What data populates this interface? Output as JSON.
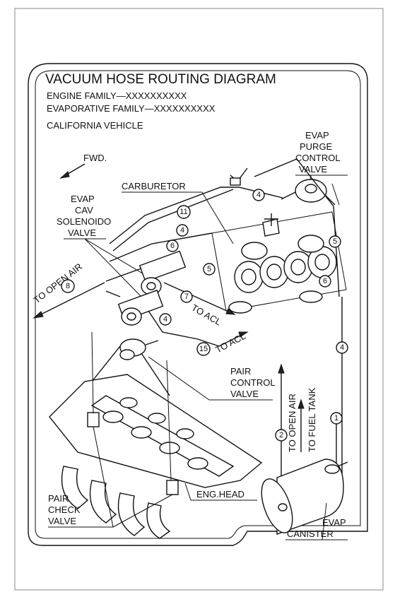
{
  "title": "VACUUM HOSE ROUTING DIAGRAM",
  "engine_family": "ENGINE FAMILY—XXXXXXXXXX",
  "evaporative_family": "EVAPORATIVE FAMILY—XXXXXXXXXX",
  "vehicle": "CALIFORNIA VEHICLE",
  "labels": {
    "fwd": "FWD.",
    "purge_1": "EVAP",
    "purge_2": "PURGE",
    "purge_3": "CONTROL",
    "purge_4": "VALVE",
    "carburetor": "CARBURETOR",
    "cav_1": "EVAP",
    "cav_2": "CAV",
    "cav_3": "SOLENOIDO",
    "cav_4": "VALVE",
    "to_open_air_left": "TO OPEN AIR",
    "to_acl_1": "TO ACL",
    "to_acl_2": "TO ACL",
    "pair_control_1": "PAIR",
    "pair_control_2": "CONTROL",
    "pair_control_3": "VALVE",
    "to_open_air_right": "TO OPEN AIR",
    "to_fuel_tank": "TO FUEL TANK",
    "eng_head": "ENG.HEAD",
    "pair_check_1": "PAIR",
    "pair_check_2": "CHECK",
    "pair_check_3": "VALVE",
    "canister_1": "EVAP",
    "canister_2": "CANISTER"
  },
  "hose_numbers": {
    "h4_top": "4",
    "h11": "11",
    "h4_mid": "4",
    "h6_left": "6",
    "h5_right": "5",
    "h5_carb": "5",
    "h6_carb": "6",
    "h8": "8",
    "h7": "7",
    "h4_low": "4",
    "h15": "15",
    "h4_fuel": "4",
    "h1": "1",
    "h2": "2"
  }
}
